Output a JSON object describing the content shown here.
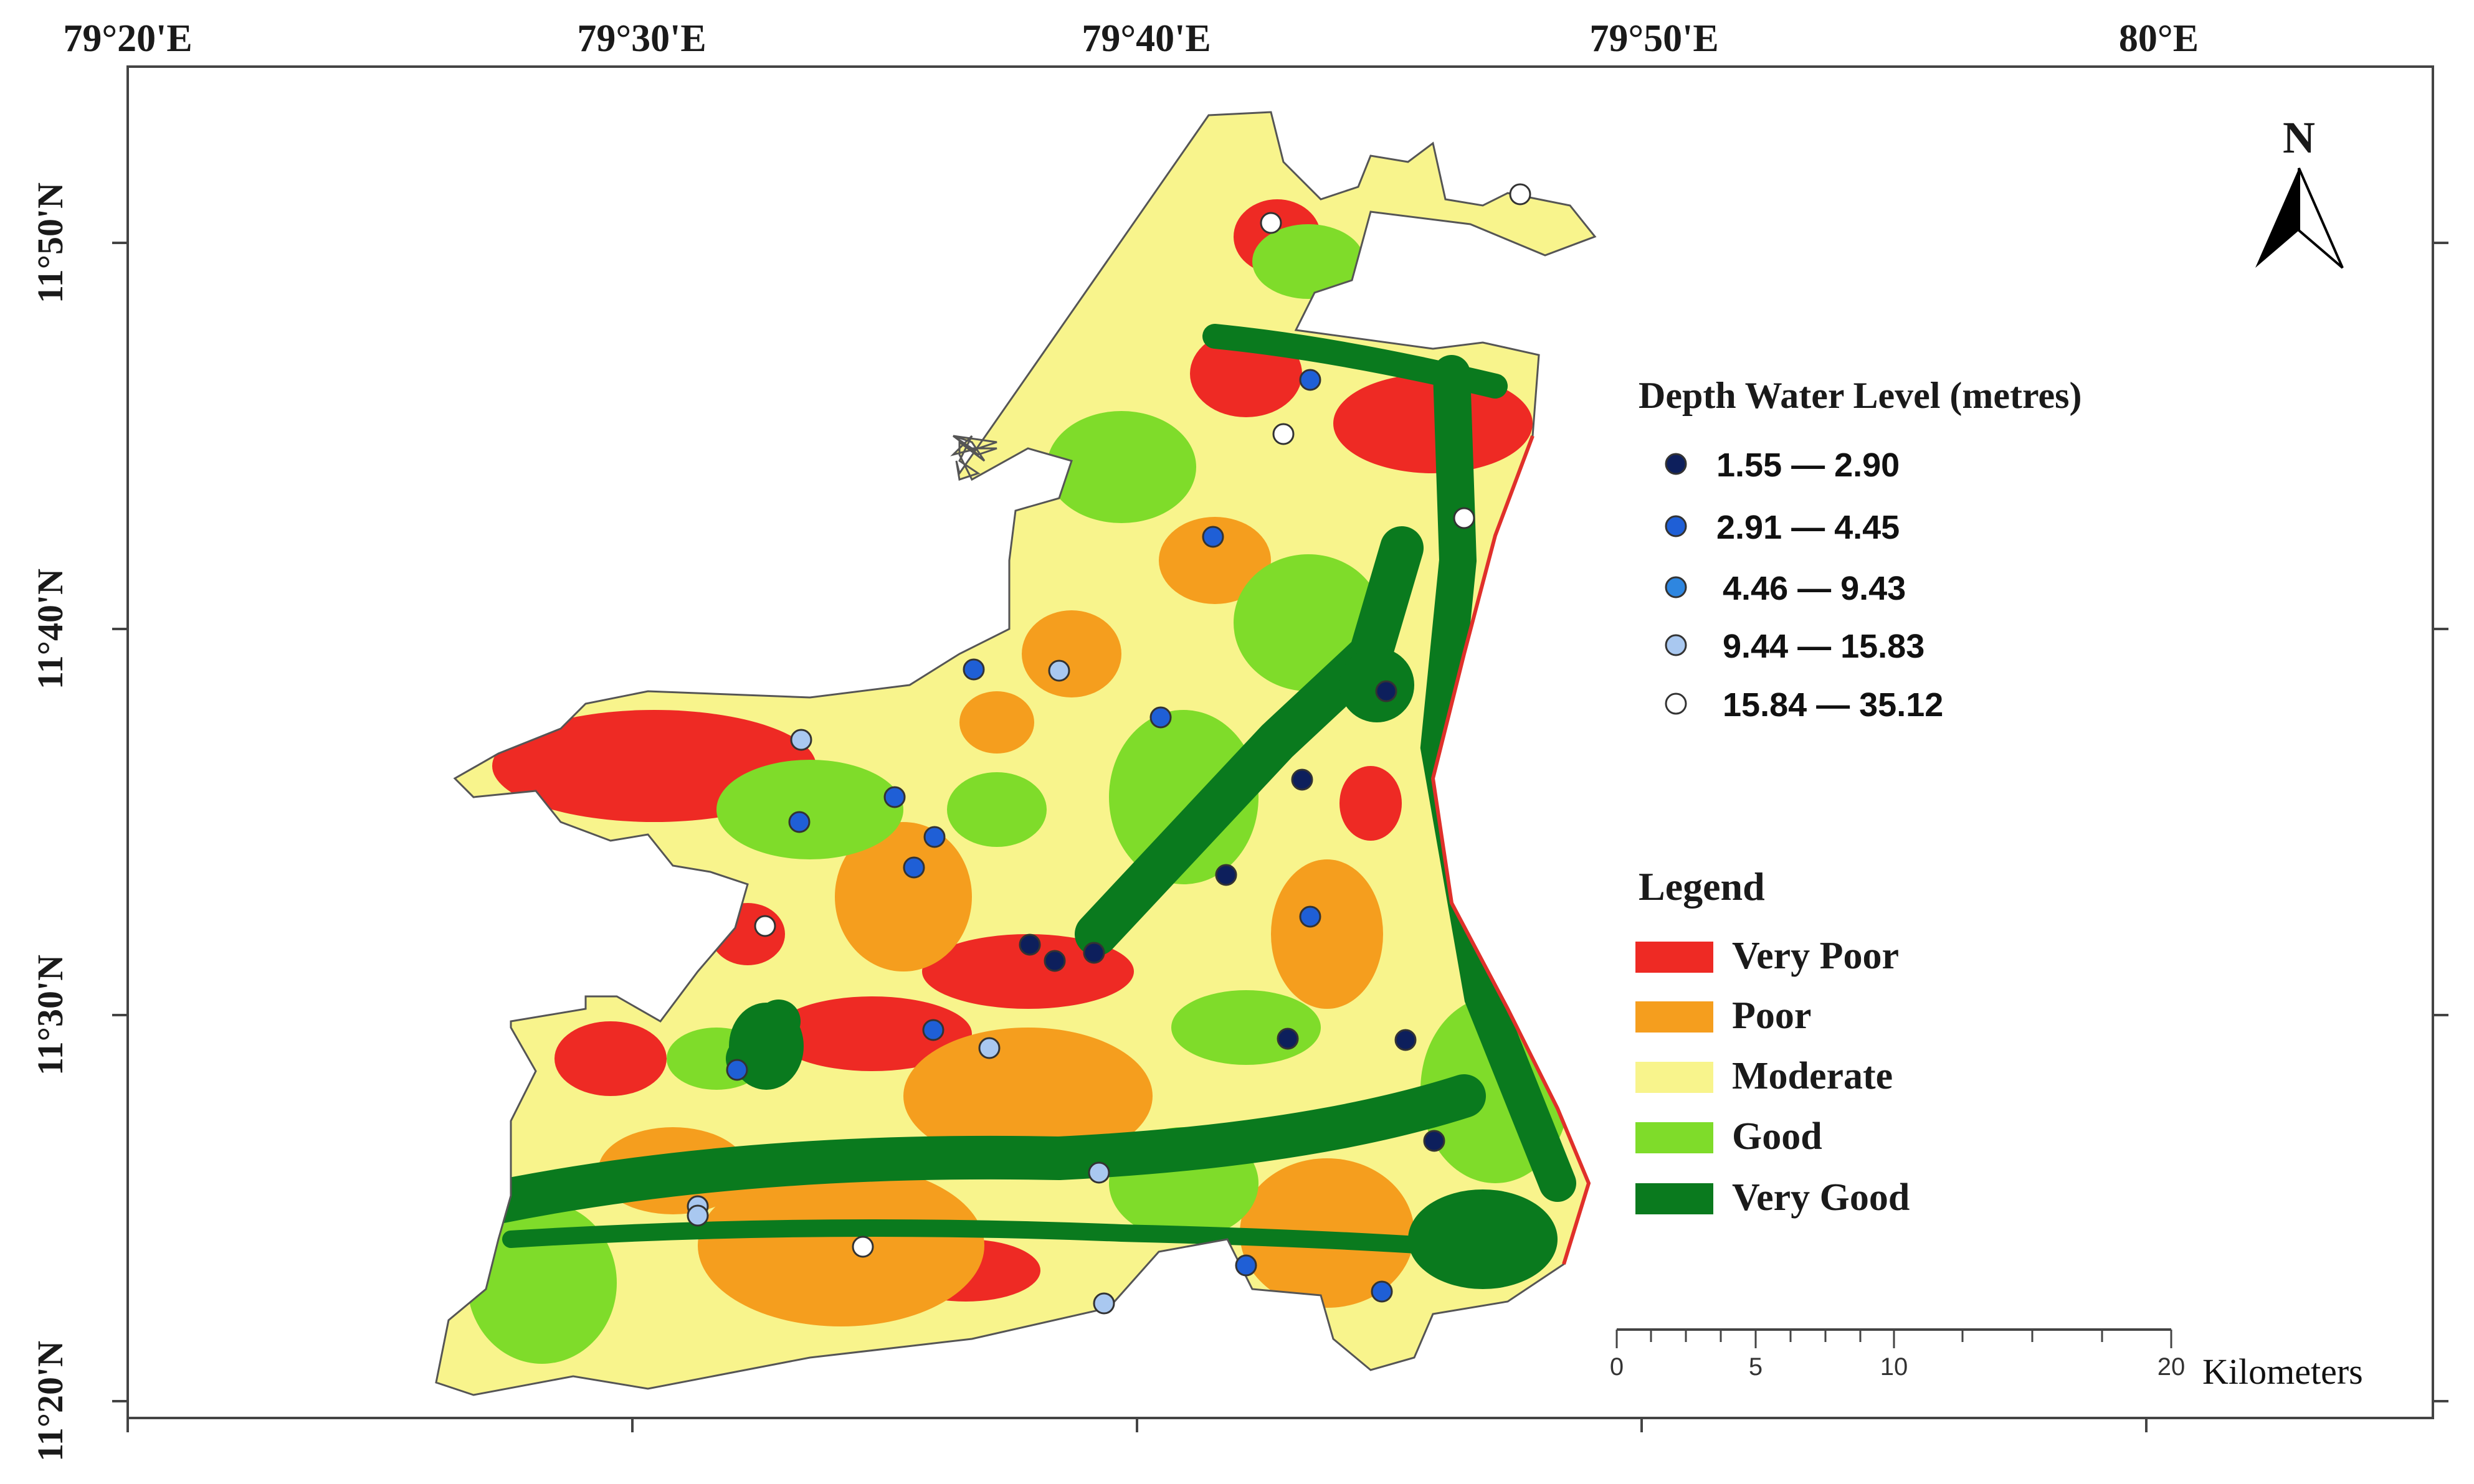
{
  "map": {
    "top_longitudes": [
      "79°20'E",
      "79°30'E",
      "79°40'E",
      "79°50'E",
      "80°E"
    ],
    "left_latitudes": [
      "11°50'N",
      "11°40'N",
      "11°30'N",
      "11°20'N"
    ],
    "north_label": "N"
  },
  "depth_legend": {
    "title": "Depth Water Level (metres)",
    "classes": [
      {
        "label": "1.55 — 2.90",
        "color": "#0d1f5c"
      },
      {
        "label": "2.91 — 4.45",
        "color": "#1f5fd6"
      },
      {
        "label": "4.46 — 9.43",
        "color": "#2e86e0"
      },
      {
        "label": "9.44 — 15.83",
        "color": "#a9c8f0"
      },
      {
        "label": "15.84 — 35.12",
        "color": "#ffffff"
      }
    ]
  },
  "zone_legend": {
    "title": "Legend",
    "classes": [
      {
        "label": "Very Poor",
        "color": "#ee2a24"
      },
      {
        "label": "Poor",
        "color": "#f59e1e"
      },
      {
        "label": "Moderate",
        "color": "#f8f48c"
      },
      {
        "label": "Good",
        "color": "#7fdc2a"
      },
      {
        "label": "Very Good",
        "color": "#0a7a1e"
      }
    ]
  },
  "scale_bar": {
    "ticks": [
      "0",
      "5",
      "10",
      "20"
    ],
    "unit": "Kilometers"
  }
}
